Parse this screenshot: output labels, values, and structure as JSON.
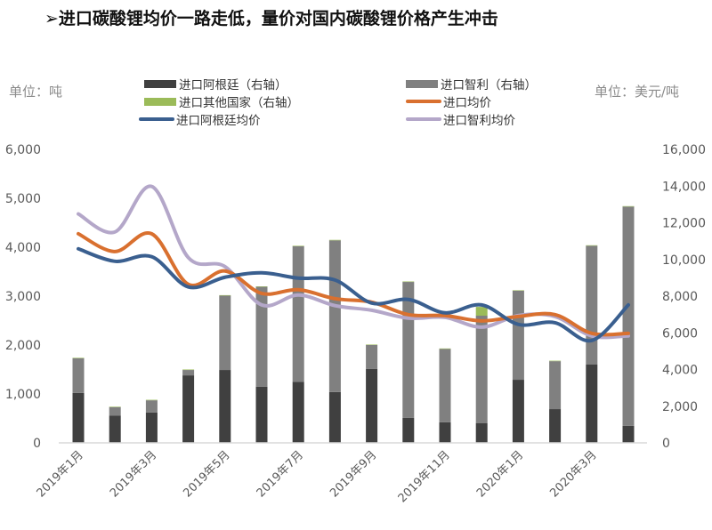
{
  "title": "➢进口碳酸锂均价一路走低，量价对国内碳酸锂价格产生冲击",
  "units": {
    "left": "单位：吨",
    "right": "单位：美元/吨"
  },
  "legend": [
    {
      "label": "进口阿根廷（右轴）",
      "type": "bar",
      "color": "#404040"
    },
    {
      "label": "进口智利（右轴）",
      "type": "bar",
      "color": "#808080"
    },
    {
      "label": "进口其他国家（右轴）",
      "type": "bar",
      "color": "#9bbb59"
    },
    {
      "label": "进口均价",
      "type": "line",
      "color": "#d9702f"
    },
    {
      "label": "进口阿根廷均价",
      "type": "line",
      "color": "#3a5f8f"
    },
    {
      "label": "进口智利均价",
      "type": "line",
      "color": "#b4a7c9"
    }
  ],
  "chart_data": {
    "type": "bar+line",
    "title": "进口碳酸锂均价一路走低，量价对国内碳酸锂价格产生冲击",
    "categories": [
      "2019年1月",
      "2019年2月",
      "2019年3月",
      "2019年4月",
      "2019年5月",
      "2019年6月",
      "2019年7月",
      "2019年8月",
      "2019年9月",
      "2019年10月",
      "2019年11月",
      "2019年12月",
      "2020年1月",
      "2020年2月",
      "2020年3月",
      "2020年4月"
    ],
    "x_tick_labels": [
      "2019年1月",
      "2019年3月",
      "2019年5月",
      "2019年7月",
      "2019年9月",
      "2019年11月",
      "2020年1月",
      "2020年3月"
    ],
    "left_axis": {
      "label": "单位：吨",
      "range": [
        0,
        6000
      ],
      "ticks": [
        "0",
        "1,000",
        "2,000",
        "3,000",
        "4,000",
        "5,000",
        "6,000"
      ]
    },
    "right_axis": {
      "label": "单位：美元/吨",
      "range": [
        0,
        16000
      ],
      "ticks": [
        "0",
        "2,000",
        "4,000",
        "6,000",
        "8,000",
        "10,000",
        "12,000",
        "14,000",
        "16,000"
      ]
    },
    "series": [
      {
        "name": "进口阿根廷（右轴）",
        "type": "stacked-bar",
        "axis": "left",
        "color": "#404040",
        "values": [
          1020,
          560,
          620,
          1380,
          1490,
          1150,
          1250,
          1040,
          1510,
          510,
          420,
          400,
          1290,
          690,
          1600,
          350
        ]
      },
      {
        "name": "进口智利（右轴）",
        "type": "stacked-bar",
        "axis": "left",
        "color": "#808080",
        "values": [
          710,
          170,
          250,
          110,
          1520,
          2040,
          2770,
          3100,
          490,
          2780,
          1500,
          2200,
          1820,
          980,
          2430,
          4480
        ]
      },
      {
        "name": "进口其他国家（右轴）",
        "type": "stacked-bar",
        "axis": "left",
        "color": "#9bbb59",
        "values": [
          10,
          10,
          10,
          10,
          10,
          10,
          10,
          10,
          10,
          10,
          10,
          180,
          10,
          10,
          10,
          10
        ]
      },
      {
        "name": "进口均价",
        "type": "line",
        "axis": "right",
        "color": "#d9702f",
        "values": [
          11400,
          10430,
          11400,
          8640,
          9370,
          8150,
          8350,
          7860,
          7670,
          6990,
          6940,
          6650,
          6890,
          6990,
          5970,
          5970
        ]
      },
      {
        "name": "进口阿根廷均价",
        "type": "line",
        "axis": "right",
        "color": "#3a5f8f",
        "values": [
          10580,
          9900,
          10150,
          8500,
          9030,
          9270,
          8980,
          8880,
          7620,
          7820,
          7090,
          7520,
          6460,
          6550,
          5580,
          7520
        ]
      },
      {
        "name": "进口智利均价",
        "type": "line",
        "axis": "right",
        "color": "#b4a7c9",
        "values": [
          12480,
          11500,
          13980,
          10100,
          9610,
          7520,
          8060,
          7480,
          7230,
          6800,
          6840,
          6310,
          6940,
          6890,
          5830,
          5830
        ]
      }
    ],
    "grid": false,
    "legend_position": "top"
  }
}
